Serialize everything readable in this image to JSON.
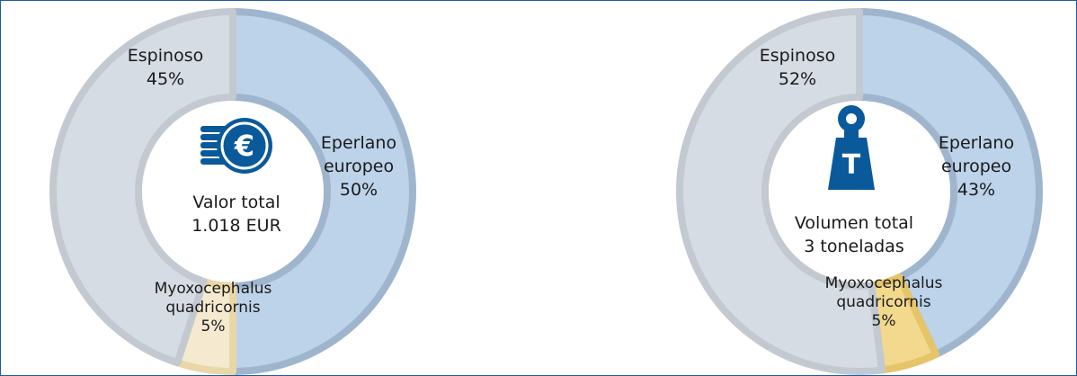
{
  "colors": {
    "frame_border": "#1f5aa6",
    "icon_blue": "#0a5a9b",
    "center_bg": "#ffffff"
  },
  "chart_data": [
    {
      "type": "pie",
      "variant": "donut",
      "center_icon": "euro-coins-icon",
      "center_text": [
        "Valor total",
        "1.018 EUR"
      ],
      "slices": [
        {
          "label": [
            "Eperlano",
            "europeo"
          ],
          "value": 50,
          "value_label": "50%",
          "fill": "#bcd3ea",
          "stroke": "#9fb5cd"
        },
        {
          "label": [
            "Myoxocephalus",
            "quadricornis"
          ],
          "value": 5,
          "value_label": "5%",
          "fill": "#f5ead0",
          "stroke": "#e9d7a8"
        },
        {
          "label": [
            "Espinoso"
          ],
          "value": 45,
          "value_label": "45%",
          "fill": "#d6dce4",
          "stroke": "#c3c9d1"
        }
      ]
    },
    {
      "type": "pie",
      "variant": "donut",
      "center_icon": "weight-ton-icon",
      "center_text": [
        "Volumen total",
        "3 toneladas"
      ],
      "slices": [
        {
          "label": [
            "Eperlano",
            "europeo"
          ],
          "value": 43,
          "value_label": "43%",
          "fill": "#bcd3ea",
          "stroke": "#9fb5cd"
        },
        {
          "label": [
            "Myoxocephalus",
            "quadricornis"
          ],
          "value": 5,
          "value_label": "5%",
          "fill": "#f2d98e",
          "stroke": "#e5c46a"
        },
        {
          "label": [
            "Espinoso"
          ],
          "value": 52,
          "value_label": "52%",
          "fill": "#d6dce4",
          "stroke": "#c3c9d1"
        }
      ]
    }
  ]
}
